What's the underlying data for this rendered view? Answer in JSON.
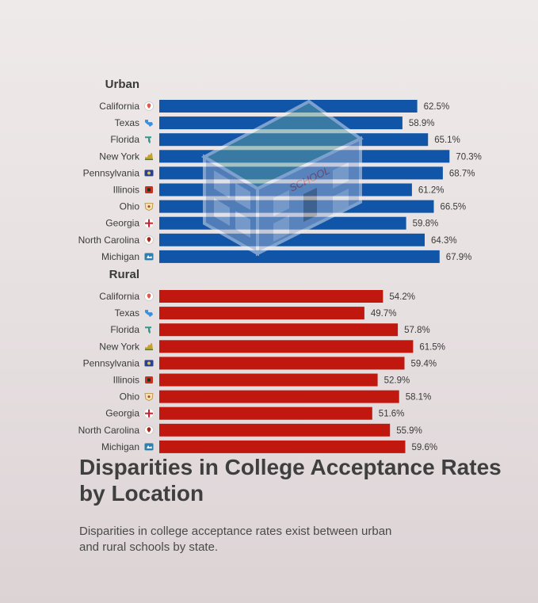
{
  "title": "Disparities in College Acceptance Rates by Location",
  "subtitle": "Disparities in college acceptance rates exist between urban and rural schools by state.",
  "chart_data": {
    "type": "bar",
    "orientation": "horizontal",
    "title": "Disparities in College Acceptance Rates by Location",
    "categories": [
      "California",
      "Texas",
      "Florida",
      "New York",
      "Pennsylvania",
      "Illinois",
      "Ohio",
      "Georgia",
      "North Carolina",
      "Michigan"
    ],
    "series": [
      {
        "name": "Urban",
        "color": "#1155a8",
        "values": [
          62.5,
          58.9,
          65.1,
          70.3,
          68.7,
          61.2,
          66.5,
          59.8,
          64.3,
          67.9
        ]
      },
      {
        "name": "Rural",
        "color": "#c0180f",
        "values": [
          54.2,
          49.7,
          57.8,
          61.5,
          59.4,
          52.9,
          58.1,
          51.6,
          55.9,
          59.6
        ]
      }
    ],
    "value_suffix": "%",
    "xlim": [
      0,
      100
    ],
    "grid": false,
    "category_icons": [
      "map-pin-icon",
      "texas-icon",
      "florida-icon",
      "new-york-icon",
      "pennsylvania-flag-icon",
      "illinois-icon",
      "ohio-icon",
      "georgia-cross-icon",
      "north-carolina-pin-icon",
      "michigan-icon"
    ],
    "background_illustration": {
      "label": "SCHOOL",
      "icon": "school-building-icon"
    }
  }
}
